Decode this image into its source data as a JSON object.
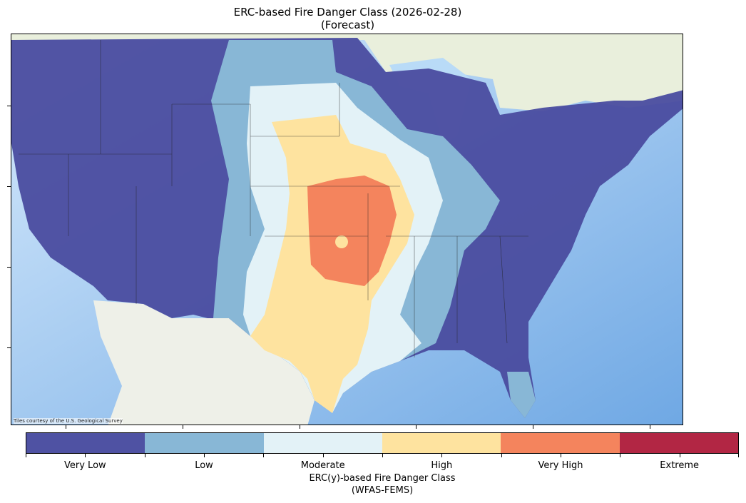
{
  "title": {
    "line1": "ERC-based Fire Danger Class (2026-02-28)",
    "line2": "(Forecast)"
  },
  "map": {
    "attribution": "Tiles courtesy of the U.S. Geological Survey",
    "basemap_colors": {
      "ocean": "#a9cff4",
      "canada": "#e9efdc",
      "mexico": "#eef0e8"
    }
  },
  "colorbar": {
    "classes": [
      {
        "label": "Very Low",
        "color": "#4f52a3"
      },
      {
        "label": "Low",
        "color": "#88b7d6"
      },
      {
        "label": "Moderate",
        "color": "#e3f2f7"
      },
      {
        "label": "High",
        "color": "#fee39f"
      },
      {
        "label": "Very High",
        "color": "#f4845d"
      },
      {
        "label": "Extreme",
        "color": "#b22644"
      }
    ],
    "title_line1": "ERC(y)-based Fire Danger Class",
    "title_line2": "(WFAS-FEMS)"
  }
}
